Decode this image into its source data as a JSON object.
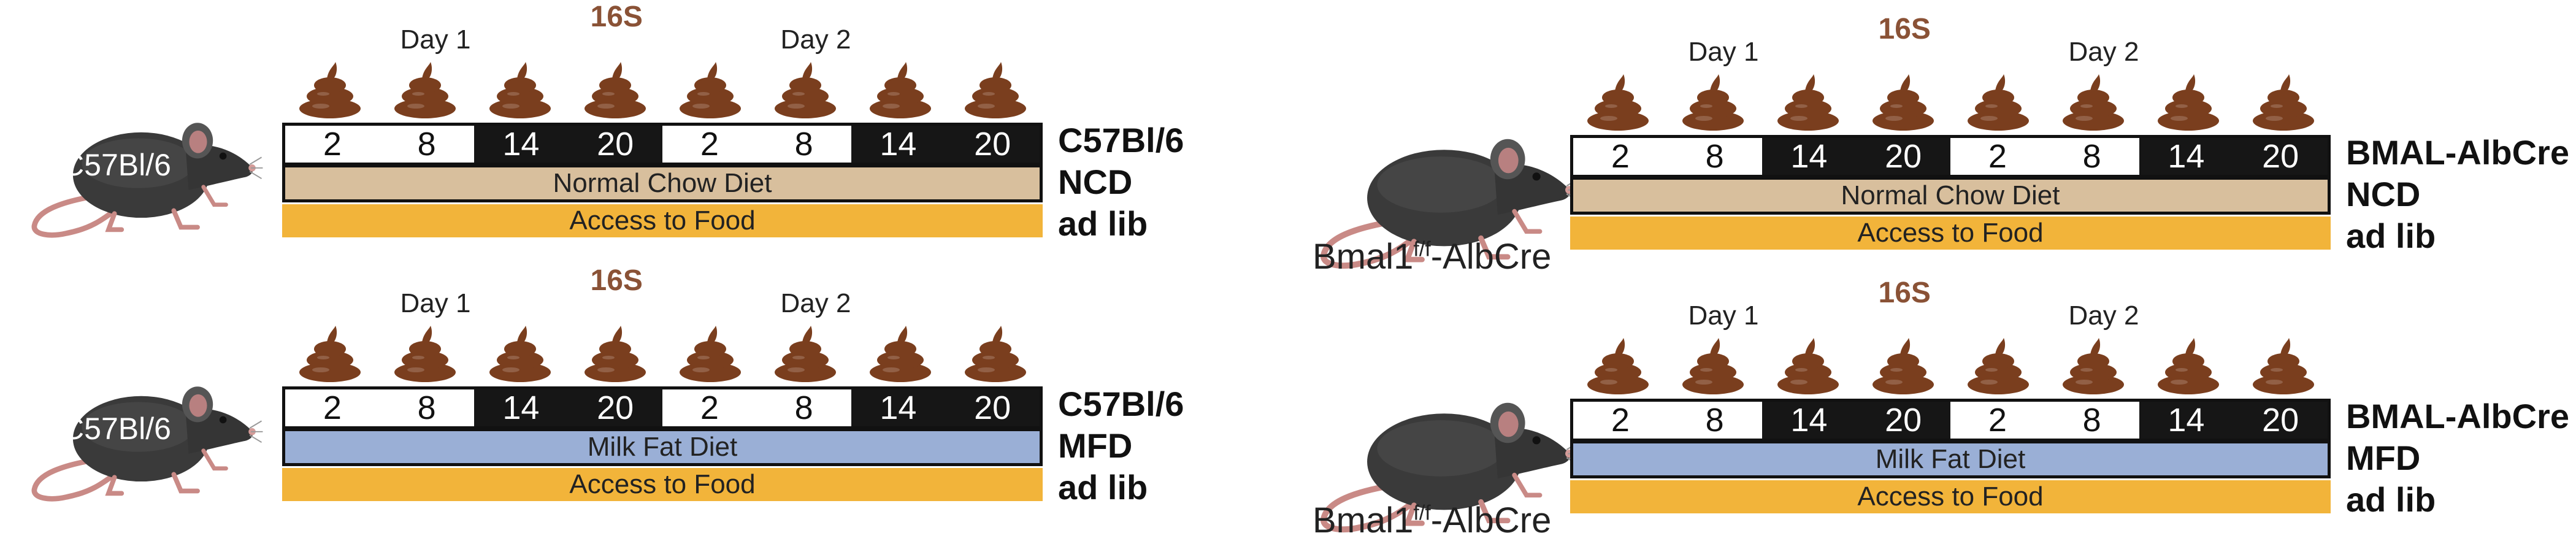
{
  "colors": {
    "ncd": "#d8bf9d",
    "mfd": "#9aafd6",
    "food": "#f2b43a",
    "dark_phase": "#161616",
    "light_phase": "#ffffff",
    "seq_label": "#8a5236",
    "poop": "#7a3e1e"
  },
  "icons": {
    "mouse": "mouse-icon",
    "sample": "fecal-pellet-icon"
  },
  "panels": [
    {
      "id": "wt-ncd",
      "mouse_label": "C57Bl/6",
      "strain_label": "",
      "seq": "16S",
      "day1": "Day 1",
      "day2": "Day 2",
      "timepoints": [
        {
          "t": "2",
          "phase": "light"
        },
        {
          "t": "8",
          "phase": "light"
        },
        {
          "t": "14",
          "phase": "dark"
        },
        {
          "t": "20",
          "phase": "dark"
        },
        {
          "t": "2",
          "phase": "light"
        },
        {
          "t": "8",
          "phase": "light"
        },
        {
          "t": "14",
          "phase": "dark"
        },
        {
          "t": "20",
          "phase": "dark"
        }
      ],
      "diet": "Normal Chow Diet",
      "diet_type": "ncd",
      "food": "Access to Food",
      "condition": [
        "C57Bl/6",
        "NCD",
        "ad lib"
      ]
    },
    {
      "id": "wt-mfd",
      "mouse_label": "C57Bl/6",
      "strain_label": "",
      "seq": "16S",
      "day1": "Day 1",
      "day2": "Day 2",
      "timepoints": [
        {
          "t": "2",
          "phase": "light"
        },
        {
          "t": "8",
          "phase": "light"
        },
        {
          "t": "14",
          "phase": "dark"
        },
        {
          "t": "20",
          "phase": "dark"
        },
        {
          "t": "2",
          "phase": "light"
        },
        {
          "t": "8",
          "phase": "light"
        },
        {
          "t": "14",
          "phase": "dark"
        },
        {
          "t": "20",
          "phase": "dark"
        }
      ],
      "diet": "Milk Fat Diet",
      "diet_type": "mfd",
      "food": "Access to Food",
      "condition": [
        "C57Bl/6",
        "MFD",
        "ad lib"
      ]
    },
    {
      "id": "ko-ncd",
      "mouse_label": "",
      "strain_label": "Bmal1",
      "strain_sup": "f/f",
      "strain_suffix": "-AlbCre",
      "seq": "16S",
      "day1": "Day 1",
      "day2": "Day 2",
      "timepoints": [
        {
          "t": "2",
          "phase": "light"
        },
        {
          "t": "8",
          "phase": "light"
        },
        {
          "t": "14",
          "phase": "dark"
        },
        {
          "t": "20",
          "phase": "dark"
        },
        {
          "t": "2",
          "phase": "light"
        },
        {
          "t": "8",
          "phase": "light"
        },
        {
          "t": "14",
          "phase": "dark"
        },
        {
          "t": "20",
          "phase": "dark"
        }
      ],
      "diet": "Normal Chow Diet",
      "diet_type": "ncd",
      "food": "Access to Food",
      "condition": [
        "BMAL-AlbCre",
        "NCD",
        "ad lib"
      ]
    },
    {
      "id": "ko-mfd",
      "mouse_label": "",
      "strain_label": "Bmal1",
      "strain_sup": "f/f",
      "strain_suffix": "-AlbCre",
      "seq": "16S",
      "day1": "Day 1",
      "day2": "Day 2",
      "timepoints": [
        {
          "t": "2",
          "phase": "light"
        },
        {
          "t": "8",
          "phase": "light"
        },
        {
          "t": "14",
          "phase": "dark"
        },
        {
          "t": "20",
          "phase": "dark"
        },
        {
          "t": "2",
          "phase": "light"
        },
        {
          "t": "8",
          "phase": "light"
        },
        {
          "t": "14",
          "phase": "dark"
        },
        {
          "t": "20",
          "phase": "dark"
        }
      ],
      "diet": "Milk Fat Diet",
      "diet_type": "mfd",
      "food": "Access to Food",
      "condition": [
        "BMAL-AlbCre",
        "MFD",
        "ad lib"
      ]
    }
  ]
}
